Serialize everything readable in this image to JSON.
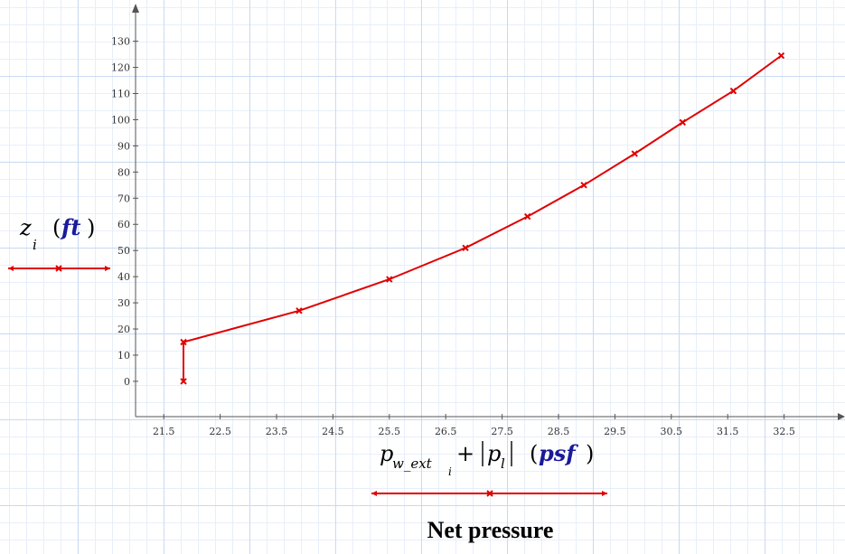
{
  "chart_data": {
    "type": "line",
    "x": [
      21.85,
      21.85,
      23.9,
      25.5,
      26.85,
      27.95,
      28.95,
      29.85,
      30.7,
      31.6,
      32.45
    ],
    "y": [
      0,
      15,
      27,
      39,
      51,
      63,
      75,
      87,
      99,
      111,
      124.5
    ],
    "xticks": [
      "21.5",
      "22.5",
      "23.5",
      "24.5",
      "25.5",
      "26.5",
      "27.5",
      "28.5",
      "29.5",
      "30.5",
      "31.5",
      "32.5"
    ],
    "yticks": [
      "0",
      "10",
      "20",
      "30",
      "40",
      "50",
      "60",
      "70",
      "80",
      "90",
      "100",
      "110",
      "120",
      "130"
    ],
    "xlim": [
      21.0,
      33.5
    ],
    "ylim": [
      -13.5,
      143
    ],
    "ylabel": {
      "var": "z",
      "sub": "i",
      "unit": "ft"
    },
    "xlabel": {
      "term1": "p",
      "term1_sub": "w_ext",
      "term1_subsub": "i",
      "plus": "+",
      "term2": "p",
      "term2_sub": "l",
      "unit": "psf"
    },
    "title": "Net pressure",
    "series_color": "#e00000",
    "grid": false
  }
}
